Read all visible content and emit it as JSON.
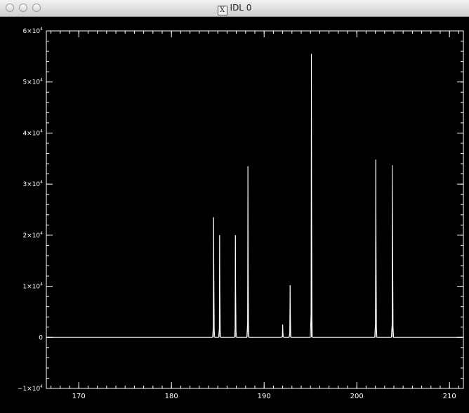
{
  "window": {
    "title": "IDL 0",
    "icon": "x11-icon",
    "icon_glyph": "X"
  },
  "chart_data": {
    "type": "line",
    "title": "",
    "xlabel": "",
    "ylabel": "",
    "xlim": [
      166.5,
      211.5
    ],
    "ylim": [
      -10000,
      60000
    ],
    "grid": false,
    "legend": "none",
    "line_color": "#ffffff",
    "background": "#000000",
    "x_ticks": [
      {
        "value": 170,
        "label": "170"
      },
      {
        "value": 180,
        "label": "180"
      },
      {
        "value": 190,
        "label": "190"
      },
      {
        "value": 200,
        "label": "200"
      },
      {
        "value": 210,
        "label": "210"
      }
    ],
    "y_ticks": [
      {
        "value": -10000,
        "mant": "−1×10",
        "exp": "4"
      },
      {
        "value": 0,
        "mant": "0",
        "exp": ""
      },
      {
        "value": 10000,
        "mant": "1×10",
        "exp": "4"
      },
      {
        "value": 20000,
        "mant": "2×10",
        "exp": "4"
      },
      {
        "value": 30000,
        "mant": "3×10",
        "exp": "4"
      },
      {
        "value": 40000,
        "mant": "4×10",
        "exp": "4"
      },
      {
        "value": 50000,
        "mant": "5×10",
        "exp": "4"
      },
      {
        "value": 60000,
        "mant": "6×10",
        "exp": "4"
      }
    ],
    "peaks": [
      {
        "x": 184.55,
        "y": 23500
      },
      {
        "x": 185.2,
        "y": 20000
      },
      {
        "x": 186.9,
        "y": 20000
      },
      {
        "x": 188.25,
        "y": 33500
      },
      {
        "x": 192.0,
        "y": 2500
      },
      {
        "x": 192.8,
        "y": 10200
      },
      {
        "x": 195.1,
        "y": 55500
      },
      {
        "x": 202.05,
        "y": 34800
      },
      {
        "x": 203.85,
        "y": 33700
      }
    ]
  }
}
